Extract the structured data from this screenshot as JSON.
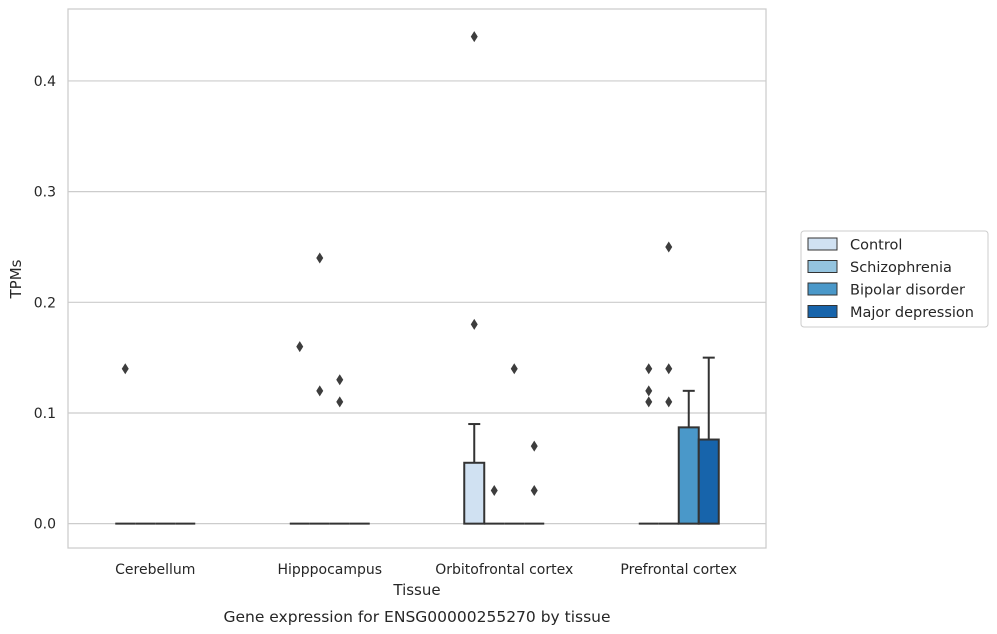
{
  "caption": "Gene expression for ENSG00000255270 by tissue",
  "colors": {
    "Control": "#d0e1f2",
    "Schizophrenia": "#94c4df",
    "Bipolar disorder": "#4a98c9",
    "Major depression": "#1764ab"
  },
  "chart_data": {
    "type": "bar",
    "xlabel": "Tissue",
    "ylabel": "TPMs",
    "categories": [
      "Cerebellum",
      "Hipppocampus",
      "Orbitofrontal cortex",
      "Prefrontal cortex"
    ],
    "yticks": [
      "0.0",
      "0.1",
      "0.2",
      "0.3",
      "0.4"
    ],
    "ylim": [
      -0.022,
      0.465
    ],
    "grid": "horizontal",
    "legend_position": "right",
    "series": [
      {
        "name": "Control",
        "values": [
          0,
          0,
          0.055,
          0
        ],
        "error_upper": [
          null,
          null,
          0.09,
          null
        ],
        "outliers": [
          [
            0.14
          ],
          [
            0.16
          ],
          [
            0.44,
            0.18
          ],
          [
            0.14,
            0.12,
            0.11
          ]
        ]
      },
      {
        "name": "Schizophrenia",
        "values": [
          0,
          0,
          0,
          0
        ],
        "error_upper": [
          null,
          null,
          null,
          null
        ],
        "outliers": [
          [],
          [
            0.24,
            0.12
          ],
          [
            0.03
          ],
          [
            0.25,
            0.14,
            0.11
          ]
        ]
      },
      {
        "name": "Bipolar disorder",
        "values": [
          0,
          0,
          0,
          0.087
        ],
        "error_upper": [
          null,
          null,
          null,
          0.12
        ],
        "outliers": [
          [],
          [
            0.13,
            0.11
          ],
          [
            0.14
          ],
          []
        ]
      },
      {
        "name": "Major depression",
        "values": [
          0,
          0,
          0,
          0.076
        ],
        "error_upper": [
          null,
          null,
          null,
          0.15
        ],
        "outliers": [
          [],
          [],
          [
            0.07,
            0.03
          ],
          []
        ]
      }
    ]
  }
}
